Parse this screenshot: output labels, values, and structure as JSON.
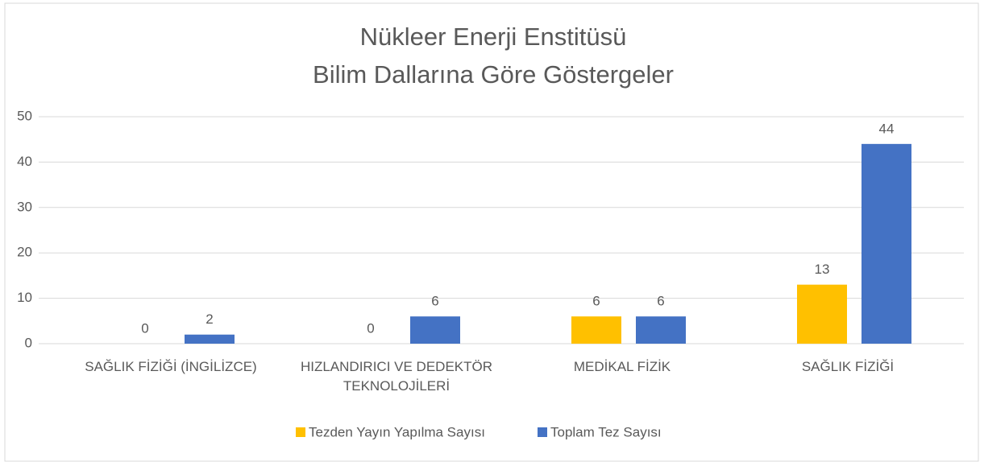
{
  "chart_data": {
    "type": "bar",
    "title": [
      "Nükleer Enerji Enstitüsü",
      "Bilim Dallarına Göre Göstergeler"
    ],
    "categories": [
      "SAĞLIK FİZİĞİ (İNGİLİZCE)",
      "HIZLANDIRICI VE DEDEKTÖR TEKNOLOJİLERİ",
      "MEDİKAL FİZİK",
      "SAĞLIK FİZİĞİ"
    ],
    "series": [
      {
        "name": "Tezden Yayın Yapılma Sayısı",
        "color": "#FFC000",
        "values": [
          0,
          0,
          6,
          13
        ]
      },
      {
        "name": "Toplam Tez Sayısı",
        "color": "#4472C4",
        "values": [
          2,
          6,
          6,
          44
        ]
      }
    ],
    "ylim": [
      0,
      50
    ],
    "yticks": [
      0,
      10,
      20,
      30,
      40,
      50
    ],
    "grid": true,
    "legend": "bottom"
  }
}
